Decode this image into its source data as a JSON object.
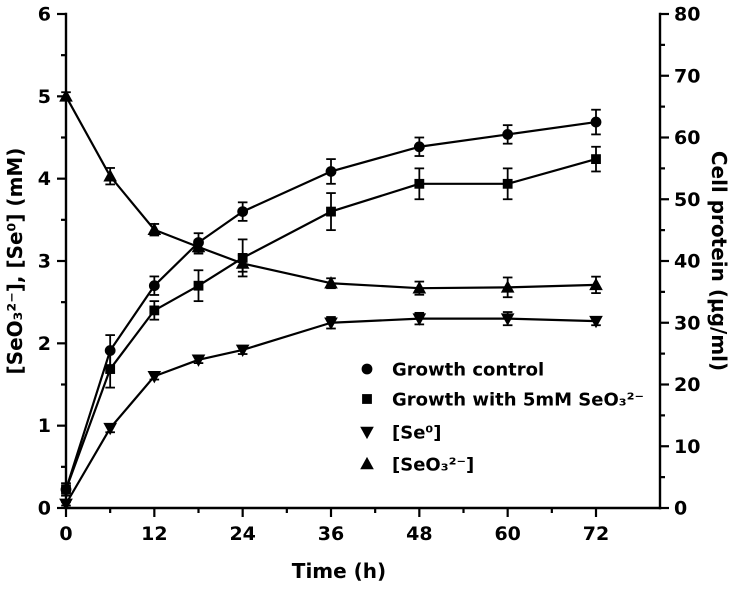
{
  "figure": {
    "background": "#ffffff",
    "foreground": "#000000"
  },
  "chart_data": {
    "type": "line",
    "title": "",
    "xlabel": "Time (h)",
    "left_axis": {
      "label": "[SeO₃²⁻], [Se⁰] (mM)",
      "min": 0,
      "max": 6,
      "ticks": [
        0,
        1,
        2,
        3,
        4,
        5,
        6
      ],
      "minor_step": 0.5
    },
    "right_axis": {
      "label": "Cell protein (μg/ml)",
      "min": 0,
      "max": 80,
      "ticks": [
        0,
        10,
        20,
        30,
        40,
        50,
        60,
        70,
        80
      ],
      "minor_step": 5
    },
    "x_axis": {
      "min": 0,
      "max": 72,
      "ticks": [
        0,
        12,
        24,
        36,
        48,
        60,
        72
      ],
      "minor_step": 6
    },
    "x": [
      0,
      6,
      12,
      18,
      24,
      36,
      48,
      60,
      72
    ],
    "series": [
      {
        "name": "Growth control",
        "marker": "circle",
        "axis": "right",
        "unit": "μg/ml",
        "values": [
          3,
          25.5,
          36,
          43,
          48,
          54.5,
          58.5,
          60.5,
          62.5
        ],
        "errors": [
          1,
          2.5,
          1.5,
          1.5,
          1.5,
          2,
          1.5,
          1.5,
          2
        ]
      },
      {
        "name": "Growth with 5mM SeO₃²⁻",
        "marker": "square",
        "axis": "right",
        "unit": "μg/ml",
        "values": [
          3,
          22.5,
          32,
          36,
          40.5,
          48,
          52.5,
          52.5,
          56.5
        ],
        "errors": [
          1,
          3,
          1.5,
          2.5,
          3,
          3,
          2.5,
          2.5,
          2
        ]
      },
      {
        "name": "[Se⁰]",
        "marker": "triangle-down",
        "axis": "left",
        "unit": "mM",
        "values": [
          0.05,
          0.97,
          1.6,
          1.8,
          1.92,
          2.25,
          2.3,
          2.3,
          2.27
        ],
        "errors": [
          0.02,
          0.05,
          0.04,
          0.04,
          0.05,
          0.07,
          0.07,
          0.08,
          0.05
        ]
      },
      {
        "name": "[SeO₃²⁻]",
        "marker": "triangle-up",
        "axis": "left",
        "unit": "mM",
        "values": [
          5.0,
          4.03,
          3.38,
          3.17,
          2.97,
          2.73,
          2.67,
          2.68,
          2.71
        ],
        "errors": [
          0.05,
          0.1,
          0.07,
          0.08,
          0.1,
          0.06,
          0.08,
          0.12,
          0.1
        ]
      }
    ],
    "legend": {
      "position": "inside-lower-right"
    },
    "colors": {
      "foreground": "#000000",
      "background": "#ffffff"
    }
  }
}
